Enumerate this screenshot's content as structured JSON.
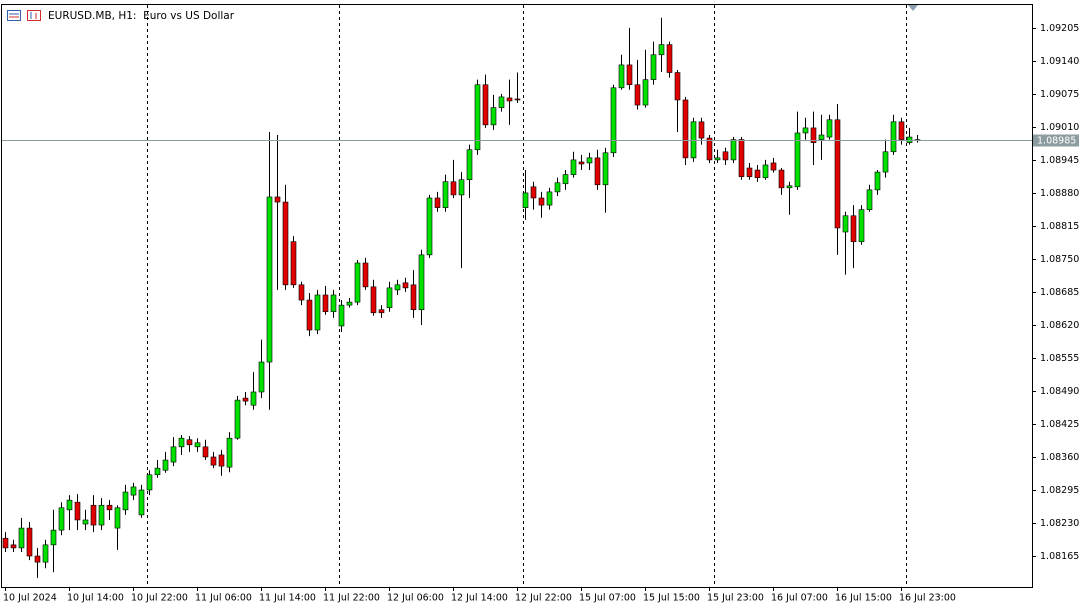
{
  "chart_data": {
    "type": "candlestick",
    "title": "EURUSD.MB, H1:  Euro vs US Dollar",
    "categories": [
      "10 Jul 2024",
      null,
      null,
      null,
      null,
      null,
      null,
      null,
      "10 Jul 14:00",
      null,
      null,
      null,
      null,
      null,
      null,
      null,
      "10 Jul 22:00",
      null,
      null,
      null,
      null,
      null,
      null,
      null,
      "11 Jul 06:00",
      null,
      null,
      null,
      null,
      null,
      null,
      null,
      "11 Jul 14:00",
      null,
      null,
      null,
      null,
      null,
      null,
      null,
      "11 Jul 22:00",
      null,
      null,
      null,
      null,
      null,
      null,
      null,
      "12 Jul 06:00",
      null,
      null,
      null,
      null,
      null,
      null,
      null,
      "12 Jul 14:00",
      null,
      null,
      null,
      null,
      null,
      null,
      null,
      "12 Jul 22:00",
      null,
      null,
      null,
      null,
      null,
      null,
      null,
      "15 Jul 07:00",
      null,
      null,
      null,
      null,
      null,
      null,
      null,
      "15 Jul 15:00",
      null,
      null,
      null,
      null,
      null,
      null,
      null,
      "15 Jul 23:00",
      null,
      null,
      null,
      null,
      null,
      null,
      null,
      "16 Jul 07:00",
      null,
      null,
      null,
      null,
      null,
      null,
      null,
      "16 Jul 15:00",
      null,
      null,
      null,
      null,
      null,
      null,
      null,
      "16 Jul 23:00",
      null,
      null
    ],
    "open": [
      1.082,
      1.08187,
      1.08181,
      1.0822,
      1.08165,
      1.08153,
      1.08187,
      1.08216,
      1.08256,
      1.08271,
      1.08228,
      1.08265,
      1.08226,
      1.08265,
      1.0822,
      1.08256,
      1.08285,
      1.08246,
      1.08295,
      1.08325,
      1.08334,
      1.0835,
      1.0838,
      1.08394,
      1.0838,
      1.0838,
      1.0836,
      1.08364,
      1.0834,
      1.08397,
      1.08476,
      1.08462,
      1.08488,
      1.08547,
      1.08872,
      1.08862,
      1.08784,
      1.08699,
      1.08669,
      1.0861,
      1.08679,
      1.08646,
      1.08618,
      1.08659,
      1.08665,
      1.08742,
      1.08695,
      1.0865,
      1.08654,
      1.08689,
      1.08703,
      1.08699,
      1.0865,
      1.08758,
      1.0887,
      1.08851,
      1.08902,
      1.08876,
      1.08906,
      1.08965,
      1.09093,
      1.09014,
      1.09048,
      1.09067,
      1.09065,
      1.08851,
      1.08892,
      1.0887,
      1.08856,
      1.08882,
      1.08898,
      1.08916,
      1.08941,
      1.08939,
      1.08949,
      1.08896,
      1.08959,
      1.09087,
      1.09132,
      1.09093,
      1.09053,
      1.09103,
      1.09152,
      1.09172,
      1.09117,
      1.09063,
      1.08949,
      1.0902,
      1.08988,
      1.08945,
      1.08961,
      1.08945,
      1.08985,
      1.08929,
      1.08925,
      1.0891,
      1.08939,
      1.08925,
      1.0889,
      1.08892,
      1.08998,
      1.09008,
      1.08985,
      1.0899,
      1.09024,
      1.08803,
      1.08835,
      1.08784,
      1.08847,
      1.08886,
      1.08921,
      1.08961,
      1.0902,
      1.08979,
      1.08985
    ],
    "high": [
      1.08212,
      1.08197,
      1.0824,
      1.08232,
      1.08181,
      1.08197,
      1.08256,
      1.08271,
      1.08285,
      1.08287,
      1.08256,
      1.08285,
      1.08279,
      1.08275,
      1.08265,
      1.08305,
      1.08309,
      1.08305,
      1.08334,
      1.08354,
      1.0837,
      1.08399,
      1.08403,
      1.08401,
      1.08397,
      1.08394,
      1.0837,
      1.08374,
      1.08409,
      1.0848,
      1.08488,
      1.08527,
      1.08591,
      1.09,
      1.08994,
      1.08896,
      1.08795,
      1.08705,
      1.08683,
      1.08689,
      1.08697,
      1.08689,
      1.08669,
      1.08673,
      1.08748,
      1.08752,
      1.08709,
      1.08659,
      1.08705,
      1.08709,
      1.08713,
      1.08728,
      1.08768,
      1.08876,
      1.08882,
      1.08916,
      1.08945,
      1.08921,
      1.08975,
      1.09103,
      1.09113,
      1.09073,
      1.09075,
      1.09103,
      1.09117,
      1.08925,
      1.08902,
      1.08882,
      1.0889,
      1.0891,
      1.08925,
      1.08961,
      1.08955,
      1.08959,
      1.08965,
      1.08969,
      1.09093,
      1.09152,
      1.09205,
      1.09142,
      1.09162,
      1.09178,
      1.09225,
      1.09178,
      1.09122,
      1.09069,
      1.09028,
      1.09028,
      1.08994,
      1.08965,
      1.08969,
      1.0899,
      1.0899,
      1.08939,
      1.08935,
      1.08945,
      1.08949,
      1.08929,
      1.08902,
      1.0904,
      1.09028,
      1.0904,
      1.09034,
      1.09034,
      1.09055,
      1.08843,
      1.08856,
      1.08856,
      1.08896,
      1.08925,
      1.08985,
      1.09034,
      1.09028,
      1.09008,
      1.08994
    ],
    "low": [
      1.08173,
      1.08173,
      1.08173,
      1.08157,
      1.08122,
      1.08141,
      1.08133,
      1.08206,
      1.08216,
      1.08216,
      1.08216,
      1.08212,
      1.08216,
      1.08236,
      1.08177,
      1.08246,
      1.08275,
      1.0824,
      1.08285,
      1.08319,
      1.08329,
      1.08342,
      1.08364,
      1.0837,
      1.0837,
      1.08354,
      1.08338,
      1.08323,
      1.0833,
      1.08394,
      1.08462,
      1.08453,
      1.08476,
      1.08453,
      1.08689,
      1.08689,
      1.08693,
      1.08659,
      1.08598,
      1.08602,
      1.0864,
      1.08634,
      1.08606,
      1.08654,
      1.08659,
      1.08689,
      1.08638,
      1.08634,
      1.08646,
      1.08679,
      1.08685,
      1.08634,
      1.0862,
      1.08752,
      1.08843,
      1.08843,
      1.0887,
      1.08732,
      1.0887,
      1.08955,
      1.09008,
      1.09004,
      1.0904,
      1.09014,
      1.09057,
      1.08827,
      1.08847,
      1.08831,
      1.08847,
      1.08874,
      1.08886,
      1.0891,
      1.08925,
      1.08925,
      1.08886,
      1.08841,
      1.08951,
      1.09083,
      1.09083,
      1.09044,
      1.09048,
      1.09093,
      1.09118,
      1.09107,
      1.09,
      1.08935,
      1.08941,
      1.08975,
      1.08939,
      1.08939,
      1.08935,
      1.08939,
      1.08906,
      1.08906,
      1.08902,
      1.08906,
      1.0892,
      1.08876,
      1.08837,
      1.08886,
      1.08985,
      1.08935,
      1.08945,
      1.08985,
      1.08758,
      1.08719,
      1.08732,
      1.08778,
      1.08843,
      1.08876,
      1.0891,
      1.08955,
      1.08975,
      1.08975,
      1.08979
    ],
    "close": [
      1.08181,
      1.08181,
      1.0822,
      1.08165,
      1.08153,
      1.08187,
      1.08216,
      1.0826,
      1.08275,
      1.08236,
      1.08236,
      1.08226,
      1.08265,
      1.08256,
      1.0826,
      1.08291,
      1.08301,
      1.08295,
      1.08325,
      1.08338,
      1.08354,
      1.0838,
      1.08397,
      1.08384,
      1.08388,
      1.0836,
      1.08344,
      1.08342,
      1.08397,
      1.08472,
      1.0847,
      1.08488,
      1.08547,
      1.08872,
      1.08862,
      1.08699,
      1.08699,
      1.08669,
      1.0861,
      1.08679,
      1.08646,
      1.08679,
      1.08659,
      1.08665,
      1.08742,
      1.08695,
      1.08644,
      1.08644,
      1.08693,
      1.08699,
      1.08693,
      1.0865,
      1.08758,
      1.0887,
      1.08851,
      1.08902,
      1.08876,
      1.08906,
      1.08965,
      1.09093,
      1.09014,
      1.09048,
      1.09069,
      1.09061,
      1.09063,
      1.0888,
      1.0887,
      1.08856,
      1.08882,
      1.089,
      1.08916,
      1.08945,
      1.08937,
      1.08949,
      1.08896,
      1.08959,
      1.09087,
      1.09132,
      1.09093,
      1.09053,
      1.09103,
      1.09152,
      1.09172,
      1.09117,
      1.09063,
      1.08949,
      1.0902,
      1.08988,
      1.08945,
      1.08949,
      1.08945,
      1.08985,
      1.08912,
      1.08912,
      1.0891,
      1.08935,
      1.08925,
      1.0889,
      1.08894,
      1.08998,
      1.09008,
      1.08979,
      1.08994,
      1.09024,
      1.08811,
      1.08835,
      1.08784,
      1.08847,
      1.08886,
      1.08921,
      1.08961,
      1.0902,
      1.08985,
      1.0899,
      1.08985
    ],
    "up_color": "#00e000",
    "down_color": "#e00000",
    "wick_color": "#000000",
    "bid": 1.08985,
    "bid_color": "#8c9ca0",
    "ylim": [
      1.08104,
      1.0925
    ],
    "yticks": [
      1.08165,
      {
        "value": 1.0823,
        "label": "1.08230"
      },
      1.08295,
      {
        "value": 1.0836,
        "label": "1.08360"
      },
      1.08425,
      {
        "value": 1.0849,
        "label": "1.08490"
      },
      1.08555,
      {
        "value": 1.0862,
        "label": "1.08620"
      },
      1.08685,
      {
        "value": 1.0875,
        "label": "1.08750"
      },
      1.08815,
      {
        "value": 1.0888,
        "label": "1.08880"
      },
      1.08945,
      {
        "value": 1.0901,
        "label": "1.09010"
      },
      1.09075,
      {
        "value": 1.0914,
        "label": "1.09140"
      },
      1.09205
    ],
    "grid": false
  }
}
